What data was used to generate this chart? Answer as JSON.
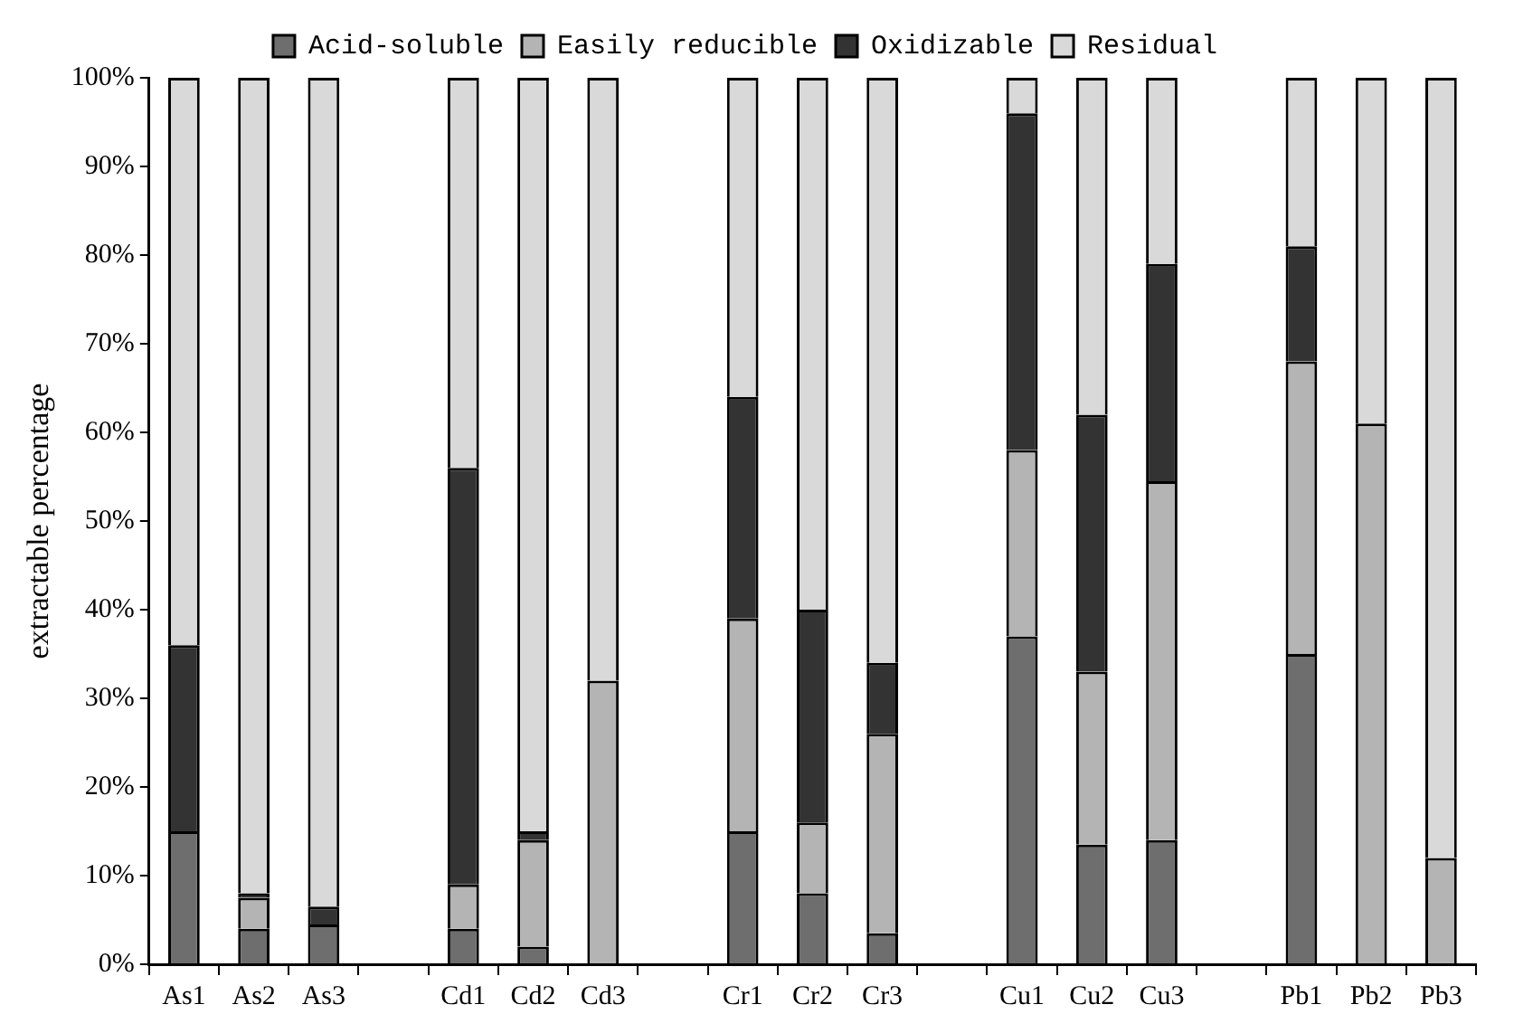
{
  "chart_data": {
    "type": "bar",
    "stacked": true,
    "ylabel": "extractable percentage",
    "categories": [
      "As1",
      "As2",
      "As3",
      null,
      "Cd1",
      "Cd2",
      "Cd3",
      null,
      "Cr1",
      "Cr2",
      "Cr3",
      null,
      "Cu1",
      "Cu2",
      "Cu3",
      null,
      "Pb1",
      "Pb2",
      "Pb3"
    ],
    "series": [
      {
        "name": "Acid-soluble",
        "color": "#6e6e6e",
        "values": [
          15,
          4,
          4.5,
          null,
          4,
          2,
          0,
          null,
          15,
          8,
          3.5,
          null,
          37,
          13.5,
          14,
          null,
          35,
          0,
          0
        ]
      },
      {
        "name": "Easily reducible",
        "color": "#b4b4b4",
        "values": [
          0,
          3.5,
          0,
          null,
          5,
          12,
          32,
          null,
          24,
          8,
          22.5,
          null,
          21,
          19.5,
          40.5,
          null,
          33,
          61,
          12
        ]
      },
      {
        "name": "Oxidizable",
        "color": "#333333",
        "values": [
          21,
          0.5,
          2,
          null,
          47,
          1,
          0,
          null,
          25,
          24,
          8,
          null,
          38,
          29,
          24.5,
          null,
          13,
          0,
          0
        ]
      },
      {
        "name": "Residual",
        "color": "#d9d9d9",
        "values": [
          64,
          92,
          93.5,
          null,
          44,
          85,
          68,
          null,
          36,
          60,
          66,
          null,
          4,
          38,
          21,
          null,
          19,
          39,
          88
        ]
      }
    ],
    "ylim": [
      0,
      100
    ],
    "yticks": [
      {
        "value": 0,
        "label": "0%"
      },
      {
        "value": 10,
        "label": "10%"
      },
      {
        "value": 20,
        "label": "20%"
      },
      {
        "value": 30,
        "label": "30%"
      },
      {
        "value": 40,
        "label": "40%"
      },
      {
        "value": 50,
        "label": "50%"
      },
      {
        "value": 60,
        "label": "60%"
      },
      {
        "value": 70,
        "label": "70%"
      },
      {
        "value": 80,
        "label": "80%"
      },
      {
        "value": 90,
        "label": "90%"
      },
      {
        "value": 100,
        "label": "100%"
      }
    ],
    "grid": false,
    "legend": "top"
  }
}
